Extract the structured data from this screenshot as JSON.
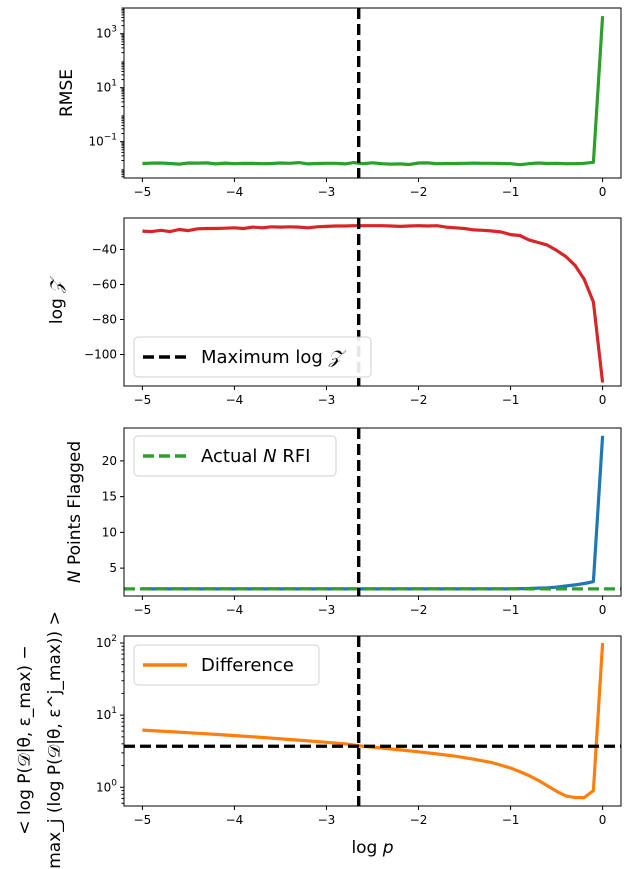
{
  "chart_data": [
    {
      "type": "line",
      "ylabel": "RMSE",
      "yscale": "log",
      "xlim": [
        -5.2,
        0.2
      ],
      "ylim": [
        0.0045,
        9000
      ],
      "xticks": [
        "−5",
        "−4",
        "−3",
        "−2",
        "−1",
        "0"
      ],
      "xtick_values": [
        -5,
        -4,
        -3,
        -2,
        -1,
        0
      ],
      "yticks": [
        {
          "value": 0.1,
          "base": "10",
          "exp": "−1"
        },
        {
          "value": 10,
          "base": "10",
          "exp": "1"
        },
        {
          "value": 1000,
          "base": "10",
          "exp": "3"
        }
      ],
      "vline_x": -2.65,
      "series": [
        {
          "color": "#2ca02c",
          "x": [
            -5,
            -4.9,
            -4.8,
            -4.7,
            -4.6,
            -4.5,
            -4.4,
            -4.3,
            -4.2,
            -4.1,
            -4,
            -3.9,
            -3.8,
            -3.7,
            -3.6,
            -3.5,
            -3.4,
            -3.3,
            -3.2,
            -3.1,
            -3,
            -2.9,
            -2.8,
            -2.7,
            -2.6,
            -2.5,
            -2.4,
            -2.3,
            -2.2,
            -2.1,
            -2,
            -1.9,
            -1.8,
            -1.7,
            -1.6,
            -1.5,
            -1.4,
            -1.3,
            -1.2,
            -1.1,
            -1,
            -0.9,
            -0.8,
            -0.7,
            -0.6,
            -0.5,
            -0.4,
            -0.3,
            -0.2,
            -0.1,
            0
          ],
          "values": [
            0.0155,
            0.016,
            0.0162,
            0.0155,
            0.0148,
            0.0162,
            0.016,
            0.0163,
            0.015,
            0.016,
            0.0152,
            0.0158,
            0.0157,
            0.0152,
            0.0155,
            0.0162,
            0.0158,
            0.0168,
            0.015,
            0.0155,
            0.0158,
            0.0158,
            0.015,
            0.0168,
            0.0153,
            0.0165,
            0.0152,
            0.0148,
            0.015,
            0.0143,
            0.0162,
            0.0163,
            0.0152,
            0.0155,
            0.0155,
            0.0158,
            0.016,
            0.0158,
            0.0158,
            0.0155,
            0.0152,
            0.014,
            0.0153,
            0.0162,
            0.0155,
            0.0158,
            0.0152,
            0.0152,
            0.0158,
            0.0172,
            4500
          ]
        }
      ]
    },
    {
      "type": "line",
      "ylabel_parts": [
        "log",
        "𝒵"
      ],
      "yscale": "linear",
      "xlim": [
        -5.2,
        0.2
      ],
      "ylim": [
        -118,
        -22
      ],
      "xticks": [
        "−5",
        "−4",
        "−3",
        "−2",
        "−1",
        "0"
      ],
      "xtick_values": [
        -5,
        -4,
        -3,
        -2,
        -1,
        0
      ],
      "yticks": [
        {
          "value": -40,
          "label": "−40"
        },
        {
          "value": -60,
          "label": "−60"
        },
        {
          "value": -80,
          "label": "−80"
        },
        {
          "value": -100,
          "label": "−100"
        }
      ],
      "vline_x": -2.65,
      "legend": {
        "placement": "lower-left",
        "label": "Maximum log",
        "label_math": "𝒵"
      },
      "series": [
        {
          "color": "#d62728",
          "x": [
            -5,
            -4.9,
            -4.8,
            -4.7,
            -4.6,
            -4.5,
            -4.4,
            -4.3,
            -4.2,
            -4.1,
            -4,
            -3.9,
            -3.8,
            -3.7,
            -3.6,
            -3.5,
            -3.4,
            -3.3,
            -3.2,
            -3.1,
            -3,
            -2.9,
            -2.8,
            -2.7,
            -2.6,
            -2.5,
            -2.4,
            -2.3,
            -2.2,
            -2.1,
            -2,
            -1.9,
            -1.8,
            -1.7,
            -1.6,
            -1.5,
            -1.4,
            -1.3,
            -1.2,
            -1.1,
            -1,
            -0.9,
            -0.8,
            -0.7,
            -0.6,
            -0.5,
            -0.4,
            -0.3,
            -0.2,
            -0.1,
            0
          ],
          "values": [
            -29.5,
            -29.8,
            -29.0,
            -29.8,
            -28.6,
            -29.2,
            -28.2,
            -28.0,
            -28.0,
            -27.8,
            -27.6,
            -28.0,
            -27.2,
            -27.6,
            -27.0,
            -27.2,
            -27.0,
            -27.2,
            -27.6,
            -27.0,
            -26.8,
            -26.6,
            -26.6,
            -26.4,
            -26.4,
            -26.4,
            -26.4,
            -26.6,
            -26.8,
            -26.6,
            -26.4,
            -26.6,
            -26.4,
            -27.2,
            -27.6,
            -28.0,
            -28.8,
            -29.0,
            -29.4,
            -30.0,
            -31.5,
            -32.0,
            -34.5,
            -36.0,
            -37.5,
            -40.5,
            -44.0,
            -49.0,
            -57.0,
            -70.0,
            -116.0
          ]
        }
      ]
    },
    {
      "type": "line",
      "ylabel_parts": [
        "N",
        " Points Flagged"
      ],
      "yscale": "linear",
      "xlim": [
        -5.2,
        0.2
      ],
      "ylim": [
        1.1,
        24.6
      ],
      "xticks": [
        "−5",
        "−4",
        "−3",
        "−2",
        "−1",
        "0"
      ],
      "xtick_values": [
        -5,
        -4,
        -3,
        -2,
        -1,
        0
      ],
      "yticks": [
        {
          "value": 5,
          "label": "5"
        },
        {
          "value": 10,
          "label": "10"
        },
        {
          "value": 15,
          "label": "15"
        },
        {
          "value": 20,
          "label": "20"
        }
      ],
      "vline_x": -2.65,
      "hline_y": 2.1,
      "hline_color": "#2ca02c",
      "legend": {
        "placement": "upper-left",
        "label_pre": "Actual ",
        "label_math": "N",
        "label_post": " RFI"
      },
      "series": [
        {
          "color": "#1f77b4",
          "x": [
            -5,
            -4.5,
            -4,
            -3.5,
            -3,
            -2.5,
            -2,
            -1.5,
            -1,
            -0.8,
            -0.7,
            -0.6,
            -0.5,
            -0.4,
            -0.3,
            -0.2,
            -0.1,
            0
          ],
          "values": [
            2.1,
            2.1,
            2.1,
            2.1,
            2.1,
            2.1,
            2.1,
            2.1,
            2.1,
            2.15,
            2.2,
            2.25,
            2.35,
            2.5,
            2.65,
            2.85,
            3.1,
            23.5
          ]
        }
      ]
    },
    {
      "type": "line",
      "ylabel_line1": "< log P(𝒟|θ, ε_max) −",
      "ylabel_line2": "max_j (log P(𝒟|θ, ε^j_max)) >",
      "yscale": "log",
      "xlabel": "log p",
      "xlim": [
        -5.2,
        0.2
      ],
      "ylim": [
        0.55,
        125
      ],
      "xticks": [
        "−5",
        "−4",
        "−3",
        "−2",
        "−1",
        "0"
      ],
      "xtick_values": [
        -5,
        -4,
        -3,
        -2,
        -1,
        0
      ],
      "yticks": [
        {
          "value": 1,
          "base": "10",
          "exp": "0"
        },
        {
          "value": 10,
          "base": "10",
          "exp": "1"
        },
        {
          "value": 100,
          "base": "10",
          "exp": "2"
        }
      ],
      "vline_x": -2.65,
      "hline_y": 3.7,
      "hline_color": "#000000",
      "legend": {
        "placement": "upper-left",
        "label": "Difference"
      },
      "series": [
        {
          "color": "#ff7f0e",
          "x": [
            -5,
            -4.8,
            -4.6,
            -4.4,
            -4.2,
            -4,
            -3.8,
            -3.6,
            -3.4,
            -3.2,
            -3,
            -2.8,
            -2.6,
            -2.4,
            -2.2,
            -2,
            -1.8,
            -1.6,
            -1.4,
            -1.2,
            -1,
            -0.9,
            -0.8,
            -0.7,
            -0.6,
            -0.5,
            -0.4,
            -0.3,
            -0.2,
            -0.1,
            0
          ],
          "values": [
            6.2,
            6.0,
            5.8,
            5.6,
            5.4,
            5.2,
            5.0,
            4.8,
            4.6,
            4.4,
            4.2,
            4.0,
            3.7,
            3.5,
            3.3,
            3.1,
            2.9,
            2.7,
            2.45,
            2.2,
            1.85,
            1.65,
            1.45,
            1.25,
            1.05,
            0.88,
            0.76,
            0.72,
            0.72,
            0.9,
            100
          ]
        }
      ]
    }
  ]
}
